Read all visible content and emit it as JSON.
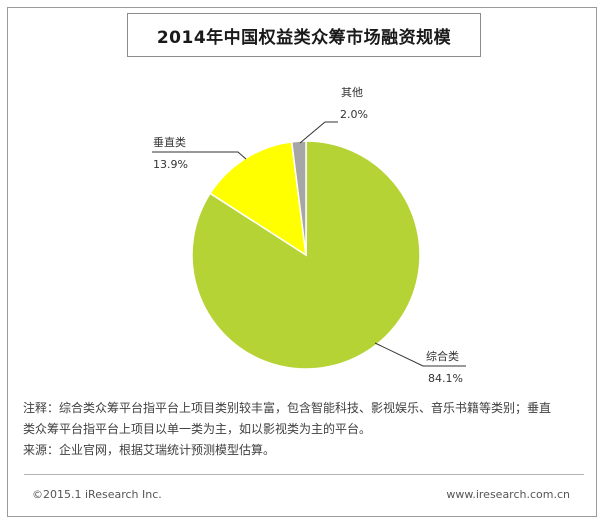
{
  "chart_data": {
    "type": "pie",
    "title": "2014年中国权益类众筹市场融资规模",
    "slices": [
      {
        "label": "综合类",
        "value": 84.1,
        "value_label": "84.1%",
        "color": "#b5d334"
      },
      {
        "label": "垂直类",
        "value": 13.9,
        "value_label": "13.9%",
        "color": "#ffff00"
      },
      {
        "label": "其他",
        "value": 2.0,
        "value_label": "2.0%",
        "color": "#a6a6a6"
      }
    ]
  },
  "notes": {
    "line1": "注释：综合类众筹平台指平台上项目类别较丰富，包含智能科技、影视娱乐、音乐书籍等类别；垂直",
    "line2": "类众筹平台指平台上项目以单一类为主，如以影视类为主的平台。",
    "line3": "来源：企业官网，根据艾瑞统计预测模型估算。"
  },
  "footer": {
    "copyright": "©2015.1 iResearch Inc.",
    "website": "www.iresearch.com.cn"
  }
}
